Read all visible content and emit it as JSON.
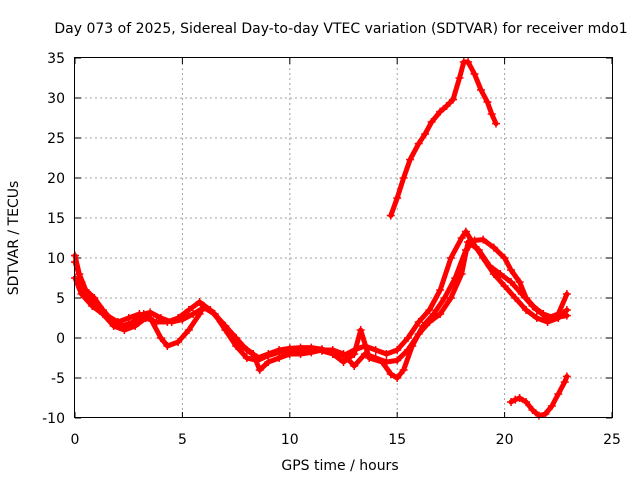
{
  "chart_data": {
    "type": "scatter",
    "title": "Day 073 of 2025, Sidereal Day-to-day VTEC variation (SDTVAR) for receiver mdo1",
    "xlabel": "GPS time / hours",
    "ylabel": "SDTVAR / TECUs",
    "xlim": [
      0,
      25
    ],
    "ylim": [
      -10,
      35
    ],
    "xticks": [
      0,
      5,
      10,
      15,
      20,
      25
    ],
    "yticks": [
      -10,
      -5,
      0,
      5,
      10,
      15,
      20,
      25,
      30,
      35
    ],
    "grid": true,
    "color": "#ff0000",
    "marker": "plus",
    "series": [
      {
        "name": "track-a",
        "points": [
          [
            0,
            10.3
          ],
          [
            0.2,
            8
          ],
          [
            0.5,
            6
          ],
          [
            0.9,
            5
          ],
          [
            1.3,
            3.5
          ],
          [
            1.8,
            2
          ],
          [
            2.2,
            1.5
          ],
          [
            2.7,
            2
          ],
          [
            3.2,
            3
          ],
          [
            3.5,
            3.2
          ],
          [
            4,
            2.5
          ],
          [
            4.5,
            2
          ],
          [
            5,
            2.3
          ],
          [
            5.5,
            3
          ],
          [
            6,
            3.8
          ],
          [
            6.5,
            3
          ],
          [
            7,
            1.5
          ],
          [
            7.5,
            0
          ],
          [
            8,
            -1.5
          ],
          [
            8.5,
            -2.5
          ],
          [
            9,
            -2
          ],
          [
            9.5,
            -1.5
          ],
          [
            10,
            -1.3
          ],
          [
            10.5,
            -1.2
          ],
          [
            11,
            -1.2
          ],
          [
            11.5,
            -1.4
          ],
          [
            12,
            -1.8
          ],
          [
            12.5,
            -2.2
          ],
          [
            13,
            -1.5
          ],
          [
            13.5,
            -1
          ],
          [
            14,
            -1.5
          ],
          [
            14.5,
            -2
          ],
          [
            15,
            -1.5
          ],
          [
            15.5,
            0
          ],
          [
            16,
            2
          ],
          [
            16.5,
            3.5
          ],
          [
            17,
            6
          ],
          [
            17.5,
            10
          ],
          [
            18,
            12.5
          ],
          [
            18.2,
            13.3
          ],
          [
            18.5,
            12
          ],
          [
            19,
            10
          ],
          [
            19.5,
            8
          ],
          [
            20,
            6.5
          ],
          [
            20.5,
            5
          ],
          [
            21,
            3.5
          ],
          [
            21.5,
            2.5
          ],
          [
            22,
            2
          ],
          [
            22.5,
            2.5
          ],
          [
            22.9,
            3.5
          ]
        ]
      },
      {
        "name": "track-b",
        "points": [
          [
            0,
            9.5
          ],
          [
            0.3,
            7
          ],
          [
            0.6,
            5
          ],
          [
            1,
            4
          ],
          [
            1.5,
            2.8
          ],
          [
            2,
            2
          ],
          [
            2.5,
            2.5
          ],
          [
            3,
            3
          ],
          [
            3.5,
            2.5
          ],
          [
            4,
            0
          ],
          [
            4.3,
            -1
          ],
          [
            4.8,
            -0.5
          ],
          [
            5.3,
            1
          ],
          [
            5.8,
            3
          ],
          [
            6,
            4
          ],
          [
            6.5,
            3
          ],
          [
            7,
            1
          ],
          [
            7.5,
            -1
          ],
          [
            8,
            -2.5
          ],
          [
            8.5,
            -2.8
          ],
          [
            9,
            -2.2
          ],
          [
            9.5,
            -1.8
          ],
          [
            10,
            -1.5
          ],
          [
            10.5,
            -1.4
          ],
          [
            11,
            -1.3
          ],
          [
            11.5,
            -1.6
          ],
          [
            12,
            -2
          ],
          [
            12.5,
            -3
          ],
          [
            13,
            -2
          ],
          [
            13.3,
            1
          ],
          [
            13.7,
            -2.5
          ],
          [
            14.3,
            -3
          ],
          [
            14.7,
            -4.5
          ],
          [
            15,
            -5
          ],
          [
            15.3,
            -4
          ],
          [
            15.7,
            -1
          ],
          [
            16.2,
            1.5
          ],
          [
            16.7,
            3
          ],
          [
            17.2,
            5
          ],
          [
            17.7,
            7.5
          ],
          [
            18.2,
            11
          ],
          [
            18.6,
            12.2
          ],
          [
            19,
            12.3
          ],
          [
            19.5,
            11.3
          ],
          [
            20,
            10
          ],
          [
            20.3,
            8.5
          ],
          [
            20.7,
            7
          ],
          [
            21,
            5
          ],
          [
            21.5,
            3.5
          ],
          [
            22,
            2.5
          ],
          [
            22.5,
            3
          ],
          [
            22.9,
            5.5
          ]
        ]
      },
      {
        "name": "track-c",
        "points": [
          [
            0,
            7.5
          ],
          [
            0.3,
            5.5
          ],
          [
            0.8,
            4
          ],
          [
            1.3,
            3
          ],
          [
            1.8,
            1.5
          ],
          [
            2.3,
            1
          ],
          [
            2.8,
            1.5
          ],
          [
            3.3,
            2.5
          ],
          [
            3.8,
            2
          ],
          [
            4.3,
            2
          ],
          [
            4.8,
            2.5
          ],
          [
            5.3,
            3.5
          ],
          [
            5.8,
            4.5
          ],
          [
            6.3,
            3.5
          ],
          [
            6.8,
            2
          ],
          [
            7.3,
            0.5
          ],
          [
            7.8,
            -1
          ],
          [
            8.3,
            -2
          ],
          [
            8.6,
            -4
          ],
          [
            9,
            -3
          ],
          [
            9.5,
            -2.5
          ],
          [
            10,
            -2
          ],
          [
            10.5,
            -2
          ],
          [
            11,
            -1.8
          ],
          [
            11.5,
            -1.5
          ],
          [
            12,
            -1.5
          ],
          [
            12.5,
            -2
          ],
          [
            13,
            -3.5
          ],
          [
            13.5,
            -2
          ],
          [
            14,
            -2.5
          ],
          [
            14.5,
            -3
          ],
          [
            15,
            -2.8
          ],
          [
            15.5,
            -1.5
          ],
          [
            16,
            0.5
          ],
          [
            16.5,
            2
          ],
          [
            17,
            3
          ],
          [
            17.5,
            5
          ],
          [
            18,
            8
          ],
          [
            18.3,
            12
          ],
          [
            18.8,
            11
          ],
          [
            19.3,
            9
          ],
          [
            19.8,
            8
          ],
          [
            20.3,
            7
          ],
          [
            20.8,
            5.5
          ],
          [
            21.3,
            4
          ],
          [
            21.8,
            3
          ],
          [
            22.3,
            2.5
          ],
          [
            22.9,
            2.8
          ]
        ]
      },
      {
        "name": "high-branch",
        "points": [
          [
            14.7,
            15.3
          ],
          [
            15,
            17.5
          ],
          [
            15.3,
            20
          ],
          [
            15.6,
            22.3
          ],
          [
            16,
            24.3
          ],
          [
            16.3,
            25.5
          ],
          [
            16.6,
            27
          ],
          [
            17,
            28.3
          ],
          [
            17.3,
            29
          ],
          [
            17.6,
            29.8
          ],
          [
            17.9,
            32.5
          ],
          [
            18.1,
            34.5
          ],
          [
            18.3,
            34.5
          ],
          [
            18.6,
            33
          ],
          [
            18.9,
            31
          ],
          [
            19.2,
            29.5
          ],
          [
            19.4,
            28
          ],
          [
            19.6,
            26.8
          ]
        ]
      },
      {
        "name": "low-branch",
        "points": [
          [
            20.3,
            -8
          ],
          [
            20.5,
            -7.7
          ],
          [
            20.7,
            -7.5
          ],
          [
            21,
            -8
          ],
          [
            21.3,
            -9
          ],
          [
            21.6,
            -9.7
          ],
          [
            21.9,
            -9.5
          ],
          [
            22.2,
            -8.5
          ],
          [
            22.5,
            -7
          ],
          [
            22.8,
            -5.5
          ],
          [
            22.9,
            -4.8
          ]
        ]
      }
    ]
  }
}
